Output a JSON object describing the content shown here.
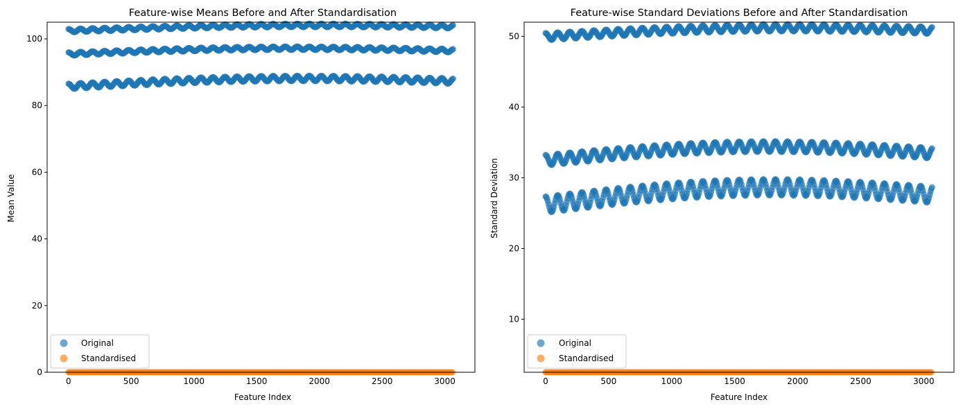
{
  "chart_data": [
    {
      "type": "scatter",
      "title": "Feature-wise Means Before and After Standardisation",
      "xlabel": "Feature Index",
      "ylabel": "Mean Value",
      "xlim": [
        -170,
        3240
      ],
      "ylim": [
        0,
        105
      ],
      "xticks": [
        0,
        500,
        1000,
        1500,
        2000,
        2500,
        3000
      ],
      "yticks": [
        0,
        20,
        40,
        60,
        80,
        100
      ],
      "grid": false,
      "legend_position": "lower-left",
      "series": [
        {
          "name": "Original",
          "color": "#1f77b4",
          "x_range": [
            0,
            3071
          ],
          "bands": [
            {
              "start": 102.8,
              "end": 104.0,
              "peak": 104.3,
              "amplitude": 1.0
            },
            {
              "start": 95.8,
              "end": 96.8,
              "peak": 97.5,
              "amplitude": 1.0
            },
            {
              "start": 86.3,
              "end": 87.9,
              "peak": 88.6,
              "amplitude": 1.6
            }
          ]
        },
        {
          "name": "Standardised",
          "color": "#ff7f0e",
          "x_range": [
            0,
            3071
          ],
          "value": 0
        }
      ]
    },
    {
      "type": "scatter",
      "title": "Feature-wise Standard Deviations Before and After Standardisation",
      "xlabel": "Feature Index",
      "ylabel": "Standard Deviation",
      "xlim": [
        -170,
        3240
      ],
      "ylim": [
        2.5,
        52
      ],
      "xticks": [
        0,
        500,
        1000,
        1500,
        2000,
        2500,
        3000
      ],
      "yticks": [
        10,
        20,
        30,
        40,
        50
      ],
      "grid": false,
      "legend_position": "lower-left",
      "series": [
        {
          "name": "Original",
          "color": "#1f77b4",
          "x_range": [
            0,
            3071
          ],
          "bands": [
            {
              "start": 50.3,
              "end": 51.2,
              "peak": 51.5,
              "amplitude": 1.0
            },
            {
              "start": 33.0,
              "end": 34.0,
              "peak": 34.9,
              "amplitude": 1.5
            },
            {
              "start": 27.0,
              "end": 28.4,
              "peak": 29.4,
              "amplitude": 2.3
            }
          ]
        },
        {
          "name": "Standardised",
          "color": "#ff7f0e",
          "x_range": [
            0,
            3071
          ],
          "value": 1
        }
      ]
    }
  ]
}
